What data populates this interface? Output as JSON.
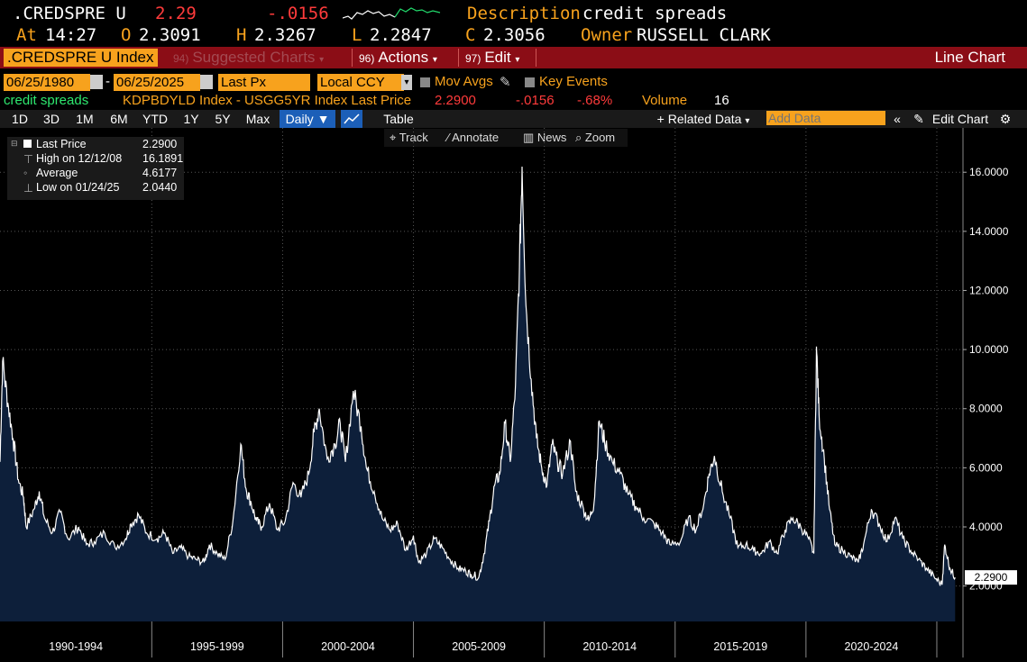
{
  "header": {
    "ticker": ".CREDSPRE U",
    "last": "2.29",
    "change": "-.0156",
    "description_label": "Description",
    "description": "credit spreads",
    "at_label": "At",
    "time": "14:27",
    "open_label": "O",
    "open": "2.3091",
    "high_label": "H",
    "high": "2.3267",
    "low_label": "L",
    "low": "2.2847",
    "close_label": "C",
    "close": "2.3056",
    "owner_label": "Owner",
    "owner": "RUSSELL CLARK"
  },
  "menubar": {
    "security": ".CREDSPRE U Index",
    "suggested_num": "94)",
    "suggested": "Suggested Charts",
    "actions_num": "96)",
    "actions": "Actions",
    "edit_num": "97)",
    "edit": "Edit",
    "chart_type": "Line Chart"
  },
  "controls": {
    "start_date": "06/25/1980",
    "end_date": "06/25/2025",
    "field": "Last Px",
    "currency": "Local CCY",
    "mov_avgs": "Mov Avgs",
    "key_events": "Key Events"
  },
  "series_info": {
    "name": "credit spreads",
    "formula": "KDPBDYLD Index - USGG5YR Index Last Price",
    "last": "2.2900",
    "change": "-.0156",
    "pct": "-.68%",
    "volume_label": "Volume",
    "volume": "16"
  },
  "ranges": [
    "1D",
    "3D",
    "1M",
    "6M",
    "YTD",
    "1Y",
    "5Y",
    "Max"
  ],
  "frequency": "Daily",
  "table_label": "Table",
  "related_data": "Related Data",
  "add_data_placeholder": "Add Data",
  "edit_chart": "Edit Chart",
  "toolbar": {
    "track": "Track",
    "annotate": "Annotate",
    "news": "News",
    "zoom": "Zoom"
  },
  "legend": {
    "last_label": "Last Price",
    "last_value": "2.2900",
    "high_label": "High on 12/12/08",
    "high_value": "16.1891",
    "avg_label": "Average",
    "avg_value": "4.6177",
    "low_label": "Low on 01/24/25",
    "low_value": "2.0440"
  },
  "colors": {
    "accent": "#f7a21d",
    "bar": "#8b0d16",
    "area_fill": "#0d1f3a",
    "line": "#ffffff",
    "negative": "#ff3b3b"
  },
  "chart_data": {
    "type": "area",
    "x_tick_labels": [
      "1990-1994",
      "1995-1999",
      "2000-2004",
      "2005-2009",
      "2010-2014",
      "2015-2019",
      "2020-2024"
    ],
    "y_ticks": [
      "2.0000",
      "4.0000",
      "6.0000",
      "8.0000",
      "10.0000",
      "12.0000",
      "14.0000",
      "16.0000"
    ],
    "ylim": [
      0.8,
      17.5
    ],
    "xlim": [
      1989.0,
      2025.8
    ],
    "last_label": "2.2900",
    "grid": true,
    "x": [
      1989.0,
      1989.1,
      1989.3,
      1989.5,
      1989.7,
      1989.9,
      1990.0,
      1990.3,
      1990.5,
      1990.7,
      1991.0,
      1991.3,
      1991.6,
      1992.0,
      1992.3,
      1992.6,
      1993.0,
      1993.4,
      1993.8,
      1994.0,
      1994.3,
      1994.6,
      1995.0,
      1995.3,
      1995.6,
      1995.9,
      1996.2,
      1996.5,
      1996.8,
      1997.0,
      1997.3,
      1997.6,
      1997.9,
      1998.2,
      1998.4,
      1998.6,
      1998.8,
      1999.0,
      1999.3,
      1999.6,
      1999.9,
      2000.2,
      2000.5,
      2000.8,
      2001.0,
      2001.2,
      2001.5,
      2001.8,
      2002.0,
      2002.2,
      2002.5,
      2002.8,
      2003.0,
      2003.3,
      2003.6,
      2003.9,
      2004.2,
      2004.5,
      2004.8,
      2005.0,
      2005.3,
      2005.6,
      2005.9,
      2006.2,
      2006.5,
      2006.8,
      2007.0,
      2007.3,
      2007.5,
      2007.7,
      2007.9,
      2008.1,
      2008.3,
      2008.5,
      2008.7,
      2008.85,
      2008.95,
      2009.1,
      2009.3,
      2009.5,
      2009.7,
      2009.9,
      2010.1,
      2010.3,
      2010.5,
      2010.8,
      2011.0,
      2011.3,
      2011.5,
      2011.7,
      2011.9,
      2012.1,
      2012.4,
      2012.7,
      2013.0,
      2013.3,
      2013.6,
      2014.0,
      2014.3,
      2014.6,
      2015.0,
      2015.3,
      2015.6,
      2015.9,
      2016.1,
      2016.3,
      2016.6,
      2016.9,
      2017.2,
      2017.5,
      2017.8,
      2018.1,
      2018.4,
      2018.7,
      2019.0,
      2019.3,
      2019.6,
      2019.9,
      2020.1,
      2020.2,
      2020.3,
      2020.5,
      2020.7,
      2020.9,
      2021.2,
      2021.5,
      2021.8,
      2022.0,
      2022.3,
      2022.6,
      2022.9,
      2023.2,
      2023.5,
      2023.8,
      2024.1,
      2024.4,
      2024.7,
      2025.0,
      2025.1,
      2025.3,
      2025.5
    ],
    "y": [
      6.2,
      9.6,
      8.2,
      7.0,
      5.6,
      5.0,
      4.0,
      4.6,
      5.2,
      4.3,
      3.8,
      4.5,
      3.6,
      4.0,
      3.4,
      3.5,
      3.8,
      3.3,
      3.6,
      4.1,
      4.4,
      3.8,
      3.6,
      3.8,
      3.1,
      3.3,
      3.0,
      2.9,
      2.8,
      3.4,
      3.1,
      2.9,
      4.2,
      6.8,
      5.3,
      4.8,
      4.2,
      4.0,
      4.8,
      3.9,
      4.2,
      5.5,
      5.0,
      5.8,
      7.2,
      8.0,
      6.3,
      6.8,
      7.5,
      6.2,
      8.6,
      7.4,
      6.0,
      5.2,
      4.3,
      3.9,
      4.1,
      3.2,
      3.7,
      2.8,
      3.1,
      3.6,
      3.3,
      2.9,
      2.6,
      2.5,
      2.4,
      2.3,
      3.1,
      4.2,
      5.4,
      5.8,
      7.5,
      6.2,
      8.8,
      12.8,
      16.19,
      11.5,
      9.0,
      7.0,
      6.0,
      5.4,
      6.8,
      6.2,
      5.8,
      6.9,
      5.2,
      4.6,
      4.2,
      4.8,
      7.6,
      6.9,
      6.2,
      5.8,
      5.1,
      4.7,
      4.3,
      4.1,
      3.8,
      3.4,
      3.5,
      4.3,
      3.9,
      4.8,
      5.8,
      6.4,
      5.2,
      4.3,
      3.3,
      3.4,
      3.2,
      3.1,
      3.5,
      3.1,
      3.9,
      4.3,
      4.0,
      3.6,
      3.1,
      10.1,
      7.8,
      6.3,
      4.6,
      3.4,
      3.2,
      3.0,
      2.8,
      3.4,
      4.6,
      4.1,
      3.5,
      4.3,
      3.6,
      3.2,
      2.9,
      2.6,
      2.3,
      2.044,
      3.4,
      2.6,
      2.29
    ]
  }
}
